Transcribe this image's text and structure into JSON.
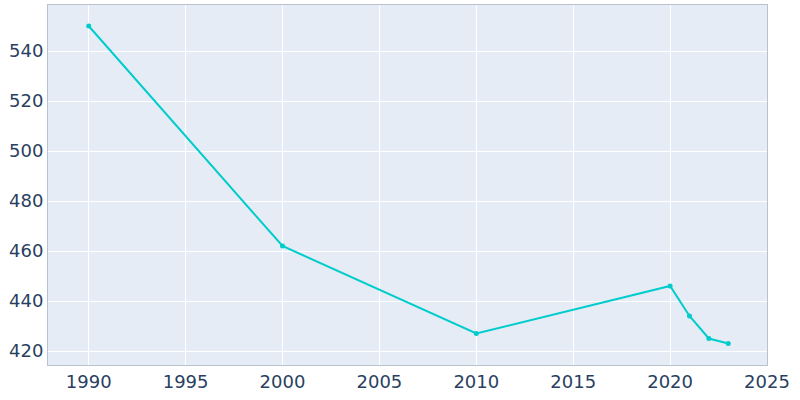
{
  "chart_data": {
    "type": "line",
    "x": [
      1990,
      2000,
      2010,
      2020,
      2021,
      2022,
      2023
    ],
    "values": [
      550,
      462,
      427,
      446,
      434,
      425,
      423
    ],
    "color": "#00cccc",
    "marker": "circle",
    "xlim": [
      1987.9,
      2025
    ],
    "ylim": [
      414.4,
      558.4
    ],
    "xticks": [
      1990,
      1995,
      2000,
      2005,
      2010,
      2015,
      2020,
      2025
    ],
    "yticks": [
      420,
      440,
      460,
      480,
      500,
      520,
      540
    ],
    "grid": true
  }
}
